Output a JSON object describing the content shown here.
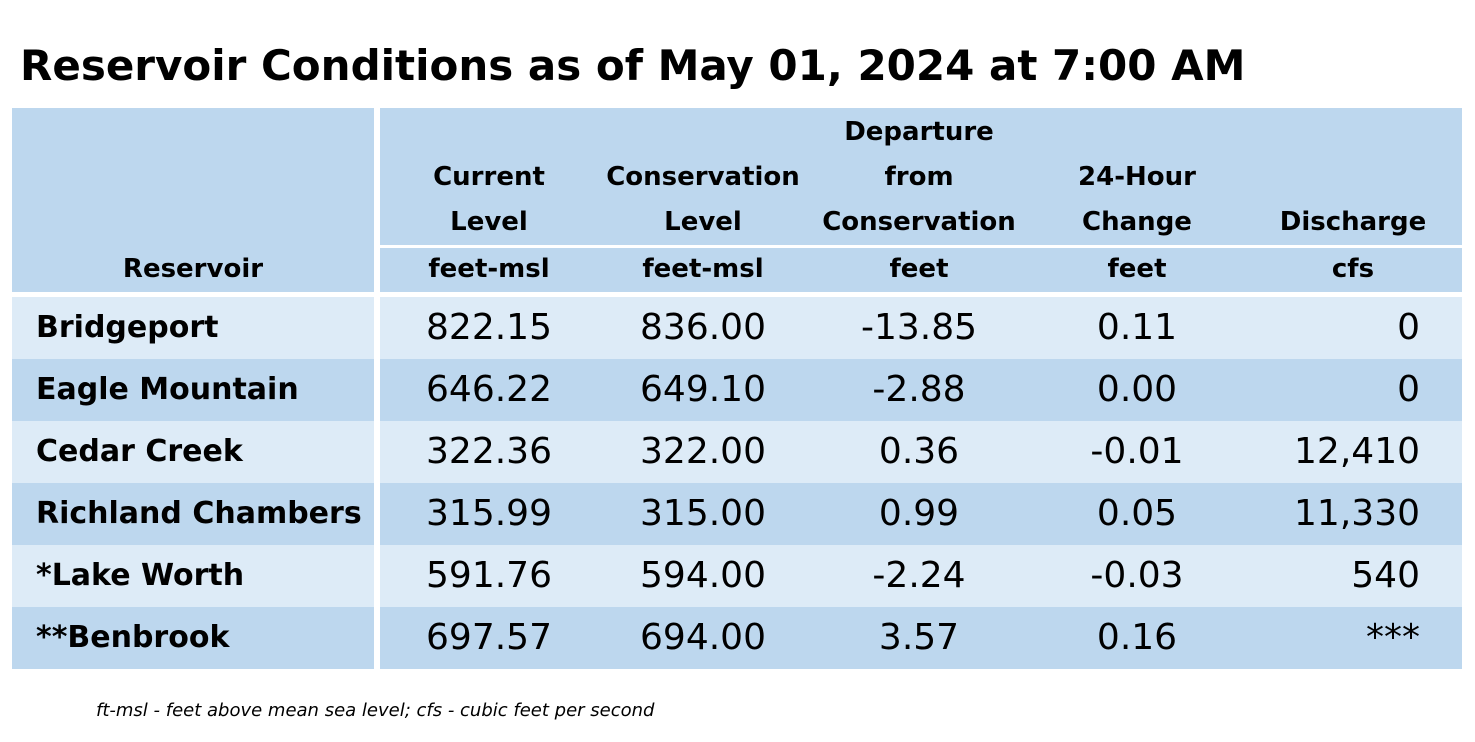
{
  "title": "Reservoir Conditions as of May 01, 2024 at 7:00 AM",
  "headers": {
    "reservoir": "Reservoir",
    "current_level": [
      "Current",
      "Level"
    ],
    "conservation_level": [
      "Conservation",
      "Level"
    ],
    "departure": [
      "Departure",
      "from",
      "Conservation"
    ],
    "change_24h": [
      "24-Hour",
      "Change"
    ],
    "discharge": [
      "Discharge"
    ]
  },
  "units": {
    "current_level": "feet-msl",
    "conservation_level": "feet-msl",
    "departure": "feet",
    "change_24h": "feet",
    "discharge": "cfs"
  },
  "rows": [
    {
      "name": "Bridgeport",
      "current": "822.15",
      "conservation": "836.00",
      "departure": "-13.85",
      "change": "0.11",
      "discharge": "0"
    },
    {
      "name": "Eagle Mountain",
      "current": "646.22",
      "conservation": "649.10",
      "departure": "-2.88",
      "change": "0.00",
      "discharge": "0"
    },
    {
      "name": "Cedar Creek",
      "current": "322.36",
      "conservation": "322.00",
      "departure": "0.36",
      "change": "-0.01",
      "discharge": "12,410"
    },
    {
      "name": "Richland Chambers",
      "current": "315.99",
      "conservation": "315.00",
      "departure": "0.99",
      "change": "0.05",
      "discharge": "11,330"
    },
    {
      "name": "*Lake Worth",
      "current": "591.76",
      "conservation": "594.00",
      "departure": "-2.24",
      "change": "-0.03",
      "discharge": "540"
    },
    {
      "name": "**Benbrook",
      "current": "697.57",
      "conservation": "694.00",
      "departure": "3.57",
      "change": "0.16",
      "discharge": "***"
    }
  ],
  "colors": {
    "header_bg": "#bdd7ee",
    "row_light": "#ddebf7",
    "row_dark": "#bdd7ee"
  },
  "footnote": "ft-msl - feet above mean sea level; cfs - cubic feet per second"
}
